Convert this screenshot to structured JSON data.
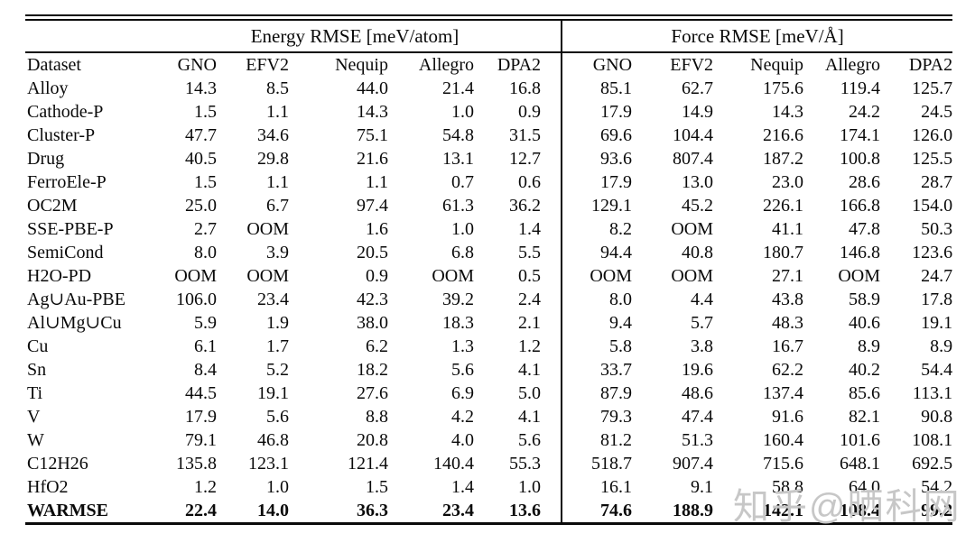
{
  "watermark": "知乎@晒科网",
  "table": {
    "group_headers": [
      "Energy RMSE [meV/atom]",
      "Force RMSE [meV/Å]"
    ],
    "dataset_header": "Dataset",
    "model_columns": [
      "GNO",
      "EFV2",
      "Nequip",
      "Allegro",
      "DPA2"
    ],
    "rows": [
      {
        "dataset": "Alloy",
        "bold": false,
        "energy": [
          "14.3",
          "8.5",
          "44.0",
          "21.4",
          "16.8"
        ],
        "force": [
          "85.1",
          "62.7",
          "175.6",
          "119.4",
          "125.7"
        ]
      },
      {
        "dataset": "Cathode-P",
        "bold": false,
        "energy": [
          "1.5",
          "1.1",
          "14.3",
          "1.0",
          "0.9"
        ],
        "force": [
          "17.9",
          "14.9",
          "14.3",
          "24.2",
          "24.5"
        ]
      },
      {
        "dataset": "Cluster-P",
        "bold": false,
        "energy": [
          "47.7",
          "34.6",
          "75.1",
          "54.8",
          "31.5"
        ],
        "force": [
          "69.6",
          "104.4",
          "216.6",
          "174.1",
          "126.0"
        ]
      },
      {
        "dataset": "Drug",
        "bold": false,
        "energy": [
          "40.5",
          "29.8",
          "21.6",
          "13.1",
          "12.7"
        ],
        "force": [
          "93.6",
          "807.4",
          "187.2",
          "100.8",
          "125.5"
        ]
      },
      {
        "dataset": "FerroEle-P",
        "bold": false,
        "energy": [
          "1.5",
          "1.1",
          "1.1",
          "0.7",
          "0.6"
        ],
        "force": [
          "17.9",
          "13.0",
          "23.0",
          "28.6",
          "28.7"
        ]
      },
      {
        "dataset": "OC2M",
        "bold": false,
        "energy": [
          "25.0",
          "6.7",
          "97.4",
          "61.3",
          "36.2"
        ],
        "force": [
          "129.1",
          "45.2",
          "226.1",
          "166.8",
          "154.0"
        ]
      },
      {
        "dataset": "SSE-PBE-P",
        "bold": false,
        "energy": [
          "2.7",
          "OOM",
          "1.6",
          "1.0",
          "1.4"
        ],
        "force": [
          "8.2",
          "OOM",
          "41.1",
          "47.8",
          "50.3"
        ]
      },
      {
        "dataset": "SemiCond",
        "bold": false,
        "energy": [
          "8.0",
          "3.9",
          "20.5",
          "6.8",
          "5.5"
        ],
        "force": [
          "94.4",
          "40.8",
          "180.7",
          "146.8",
          "123.6"
        ]
      },
      {
        "dataset": "H2O-PD",
        "bold": false,
        "energy": [
          "OOM",
          "OOM",
          "0.9",
          "OOM",
          "0.5"
        ],
        "force": [
          "OOM",
          "OOM",
          "27.1",
          "OOM",
          "24.7"
        ]
      },
      {
        "dataset": "Ag∪Au-PBE",
        "bold": false,
        "energy": [
          "106.0",
          "23.4",
          "42.3",
          "39.2",
          "2.4"
        ],
        "force": [
          "8.0",
          "4.4",
          "43.8",
          "58.9",
          "17.8"
        ]
      },
      {
        "dataset": "Al∪Mg∪Cu",
        "bold": false,
        "energy": [
          "5.9",
          "1.9",
          "38.0",
          "18.3",
          "2.1"
        ],
        "force": [
          "9.4",
          "5.7",
          "48.3",
          "40.6",
          "19.1"
        ]
      },
      {
        "dataset": "Cu",
        "bold": false,
        "energy": [
          "6.1",
          "1.7",
          "6.2",
          "1.3",
          "1.2"
        ],
        "force": [
          "5.8",
          "3.8",
          "16.7",
          "8.9",
          "8.9"
        ]
      },
      {
        "dataset": "Sn",
        "bold": false,
        "energy": [
          "8.4",
          "5.2",
          "18.2",
          "5.6",
          "4.1"
        ],
        "force": [
          "33.7",
          "19.6",
          "62.2",
          "40.2",
          "54.4"
        ]
      },
      {
        "dataset": "Ti",
        "bold": false,
        "energy": [
          "44.5",
          "19.1",
          "27.6",
          "6.9",
          "5.0"
        ],
        "force": [
          "87.9",
          "48.6",
          "137.4",
          "85.6",
          "113.1"
        ]
      },
      {
        "dataset": "V",
        "bold": false,
        "energy": [
          "17.9",
          "5.6",
          "8.8",
          "4.2",
          "4.1"
        ],
        "force": [
          "79.3",
          "47.4",
          "91.6",
          "82.1",
          "90.8"
        ]
      },
      {
        "dataset": "W",
        "bold": false,
        "energy": [
          "79.1",
          "46.8",
          "20.8",
          "4.0",
          "5.6"
        ],
        "force": [
          "81.2",
          "51.3",
          "160.4",
          "101.6",
          "108.1"
        ]
      },
      {
        "dataset": "C12H26",
        "bold": false,
        "energy": [
          "135.8",
          "123.1",
          "121.4",
          "140.4",
          "55.3"
        ],
        "force": [
          "518.7",
          "907.4",
          "715.6",
          "648.1",
          "692.5"
        ]
      },
      {
        "dataset": "HfO2",
        "bold": false,
        "energy": [
          "1.2",
          "1.0",
          "1.5",
          "1.4",
          "1.0"
        ],
        "force": [
          "16.1",
          "9.1",
          "58.8",
          "64.0",
          "54.2"
        ]
      },
      {
        "dataset": "WARMSE",
        "bold": true,
        "energy": [
          "22.4",
          "14.0",
          "36.3",
          "23.4",
          "13.6"
        ],
        "force": [
          "74.6",
          "188.9",
          "142.1",
          "108.4",
          "99.2"
        ]
      }
    ]
  }
}
